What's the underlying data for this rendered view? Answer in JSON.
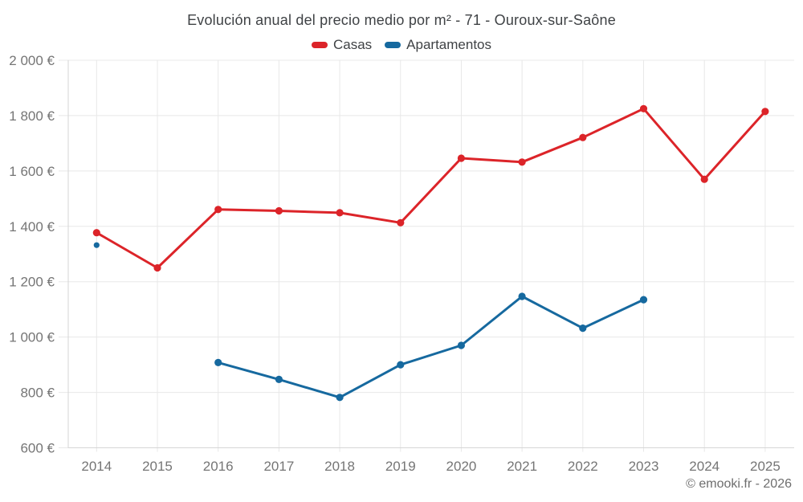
{
  "header": {
    "title": "Evolución anual del precio medio por m² - 71 - Ouroux-sur-Saône"
  },
  "legend": {
    "items": [
      {
        "label": "Casas",
        "color": "#dc2429"
      },
      {
        "label": "Apartamentos",
        "color": "#16699f"
      }
    ]
  },
  "footer": {
    "credit": "© emooki.fr - 2026"
  },
  "chart_data": {
    "type": "line",
    "title": "Evolución anual del precio medio por m² - 71 - Ouroux-sur-Saône",
    "xlabel": "",
    "ylabel": "",
    "categories": [
      "2014",
      "2015",
      "2016",
      "2017",
      "2018",
      "2019",
      "2020",
      "2021",
      "2022",
      "2023",
      "2024",
      "2025"
    ],
    "series": [
      {
        "name": "Casas",
        "color": "#dc2429",
        "values": [
          1377,
          1250,
          1461,
          1456,
          1449,
          1413,
          1646,
          1632,
          1721,
          1825,
          1570,
          1815
        ]
      },
      {
        "name": "Apartamentos",
        "color": "#16699f",
        "values": [
          1332,
          null,
          908,
          847,
          782,
          900,
          970,
          1147,
          1032,
          1135,
          null,
          null
        ]
      }
    ],
    "ylim": [
      600,
      2000
    ],
    "ytick_step": 200,
    "yticks": [
      {
        "value": 600,
        "label": "600 €"
      },
      {
        "value": 800,
        "label": "800 €"
      },
      {
        "value": 1000,
        "label": "1 000 €"
      },
      {
        "value": 1200,
        "label": "1 200 €"
      },
      {
        "value": 1400,
        "label": "1 400 €"
      },
      {
        "value": 1600,
        "label": "1 600 €"
      },
      {
        "value": 1800,
        "label": "1 800 €"
      },
      {
        "value": 2000,
        "label": "2 000 €"
      }
    ],
    "grid": true,
    "grid_color": "#e8e8e8",
    "axis_color": "#d6d6d6",
    "legend_position": "top",
    "currency_suffix": "€"
  }
}
